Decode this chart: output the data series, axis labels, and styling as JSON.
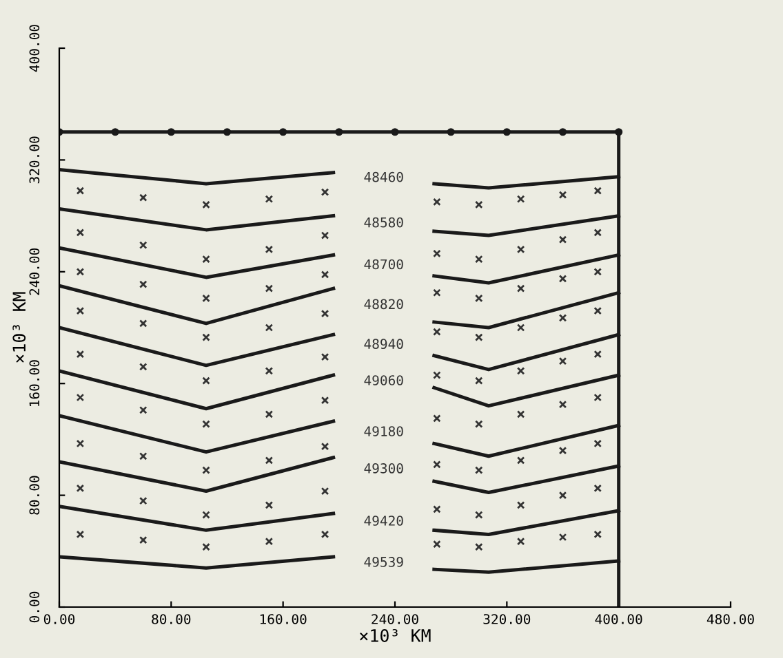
{
  "chart_data": {
    "type": "line",
    "xlabel": "×10³ KM",
    "ylabel": "×10³ KM",
    "xlim": [
      0,
      480
    ],
    "xticks": [
      {
        "value": 0,
        "label": "0.00"
      },
      {
        "value": 80,
        "label": "80.00"
      },
      {
        "value": 160,
        "label": "160.00"
      },
      {
        "value": 240,
        "label": "240.00"
      },
      {
        "value": 320,
        "label": "320.00"
      },
      {
        "value": 400,
        "label": "400.00"
      },
      {
        "value": 480,
        "label": "480.00"
      }
    ],
    "ylim": [
      0,
      400
    ],
    "yticks": [
      {
        "value": 0,
        "label": "0.00"
      },
      {
        "value": 80,
        "label": "80.00"
      },
      {
        "value": 160,
        "label": "160.00"
      },
      {
        "value": 240,
        "label": "240.00"
      },
      {
        "value": 320,
        "label": "320.00"
      },
      {
        "value": 400,
        "label": "400.00"
      }
    ],
    "grid": false,
    "series": [
      {
        "type": "line",
        "color": "#1a1a1a",
        "marker": "circle",
        "x": [
          0,
          40,
          80,
          120,
          160,
          200,
          240,
          280,
          320,
          360,
          400
        ],
        "values": [
          340,
          340,
          340,
          340,
          340,
          340,
          340,
          340,
          340,
          340,
          340
        ]
      },
      {
        "type": "line",
        "color": "#1a1a1a",
        "x": [
          400,
          400
        ],
        "values": [
          0,
          340
        ]
      },
      {
        "name": "48460",
        "color": "#1a1a1a",
        "x": [
          0,
          105,
          196,
          232,
          268,
          307,
          400
        ],
        "values": [
          313,
          303,
          311,
          null,
          303,
          300,
          308
        ]
      },
      {
        "type": "line",
        "name": "48580",
        "color": "#1a1a1a",
        "x": [
          0,
          105,
          196,
          232,
          268,
          307,
          400
        ],
        "values": [
          285,
          270,
          280,
          null,
          269,
          266,
          280
        ]
      },
      {
        "type": "line",
        "name": "48700",
        "color": "#1a1a1a",
        "x": [
          0,
          105,
          196,
          232,
          268,
          307,
          400
        ],
        "values": [
          257,
          236,
          252,
          null,
          237,
          232,
          252
        ]
      },
      {
        "type": "line",
        "name": "48820",
        "color": "#1a1a1a",
        "x": [
          0,
          105,
          196,
          232,
          268,
          307,
          400
        ],
        "values": [
          230,
          203,
          228,
          null,
          204,
          200,
          225
        ]
      },
      {
        "type": "line",
        "name": "48940",
        "color": "#1a1a1a",
        "x": [
          0,
          105,
          196,
          232,
          268,
          307,
          400
        ],
        "values": [
          200,
          173,
          195,
          null,
          180,
          170,
          195
        ]
      },
      {
        "type": "line",
        "name": "49060",
        "color": "#1a1a1a",
        "x": [
          0,
          105,
          196,
          232,
          268,
          307,
          400
        ],
        "values": [
          169,
          142,
          166,
          null,
          157,
          144,
          166
        ]
      },
      {
        "type": "line",
        "name": "49180",
        "color": "#1a1a1a",
        "x": [
          0,
          105,
          196,
          232,
          268,
          307,
          400
        ],
        "values": [
          137,
          111,
          133,
          null,
          117,
          108,
          130
        ]
      },
      {
        "type": "line",
        "name": "49300",
        "color": "#1a1a1a",
        "x": [
          0,
          105,
          196,
          232,
          268,
          307,
          400
        ],
        "values": [
          104,
          83,
          107,
          null,
          90,
          82,
          101
        ]
      },
      {
        "type": "line",
        "name": "49420",
        "color": "#1a1a1a",
        "x": [
          0,
          105,
          196,
          232,
          268,
          307,
          400
        ],
        "values": [
          72,
          55,
          67,
          null,
          55,
          52,
          69
        ]
      },
      {
        "type": "line",
        "name": "49539",
        "color": "#1a1a1a",
        "x": [
          0,
          105,
          196,
          232,
          268,
          307,
          400
        ],
        "values": [
          36,
          28,
          36,
          null,
          27,
          25,
          33
        ]
      },
      {
        "type": "scatter",
        "color": "#333333",
        "marker": "cross",
        "x": [
          15,
          60,
          105,
          150,
          190,
          270,
          300,
          330,
          360,
          385,
          15,
          60,
          105,
          150,
          190,
          270,
          300,
          330,
          360,
          385,
          15,
          60,
          105,
          150,
          190,
          270,
          300,
          330,
          360,
          385,
          15,
          60,
          105,
          150,
          190,
          270,
          300,
          330,
          360,
          385,
          15,
          60,
          105,
          150,
          190,
          270,
          300,
          330,
          360,
          385,
          15,
          60,
          105,
          150,
          190,
          270,
          300,
          330,
          360,
          385,
          15,
          60,
          105,
          150,
          190,
          270,
          300,
          330,
          360,
          385,
          15,
          60,
          105,
          150,
          190,
          270,
          300,
          330,
          360,
          385,
          15,
          60,
          105,
          150,
          190,
          270,
          300,
          330,
          360,
          385
        ],
        "values": [
          298,
          293,
          288,
          292,
          297,
          290,
          288,
          292,
          295,
          298,
          268,
          259,
          249,
          256,
          266,
          253,
          249,
          256,
          263,
          268,
          240,
          231,
          221,
          228,
          238,
          225,
          221,
          228,
          235,
          240,
          212,
          203,
          193,
          200,
          210,
          197,
          193,
          200,
          207,
          212,
          181,
          172,
          162,
          169,
          179,
          166,
          162,
          169,
          176,
          181,
          150,
          141,
          131,
          138,
          148,
          135,
          131,
          138,
          145,
          150,
          117,
          108,
          98,
          105,
          115,
          102,
          98,
          105,
          112,
          117,
          85,
          76,
          66,
          73,
          83,
          70,
          66,
          73,
          80,
          85,
          52,
          48,
          43,
          47,
          52,
          45,
          43,
          47,
          50,
          52
        ]
      }
    ]
  }
}
